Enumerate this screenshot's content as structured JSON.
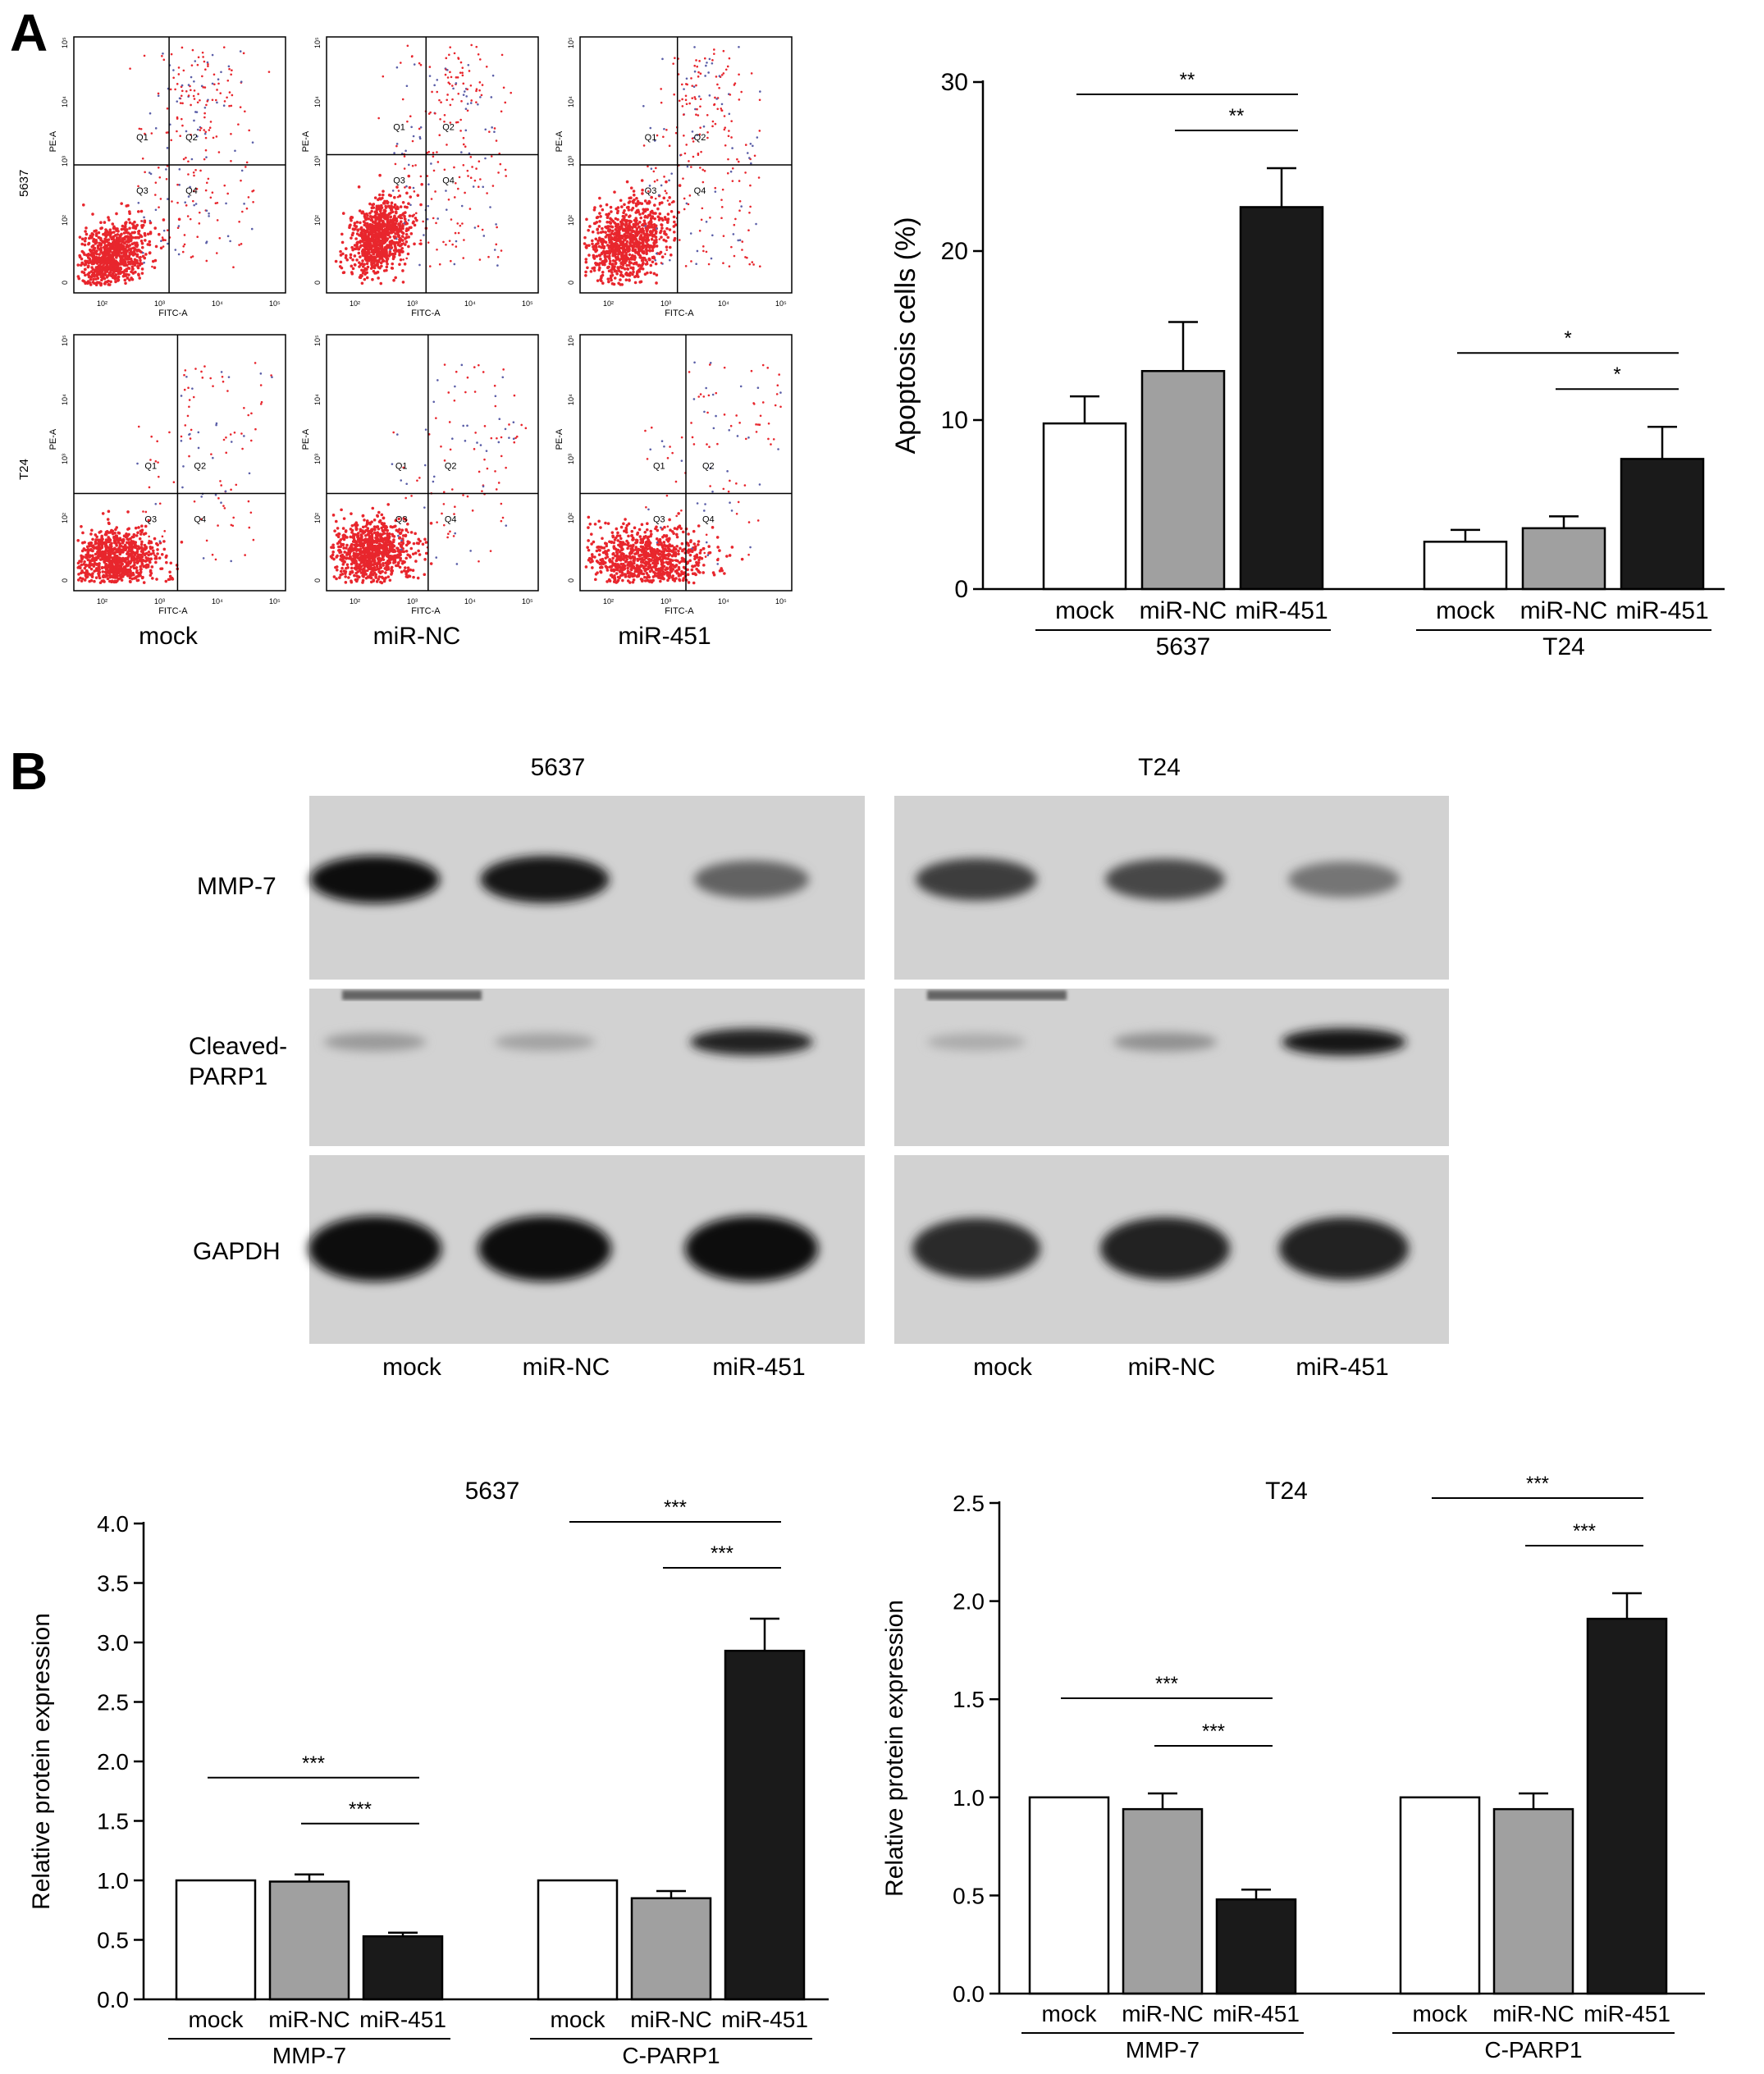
{
  "panel_labels": [
    "A",
    "B"
  ],
  "flow": {
    "plots": [
      {
        "row": 0,
        "col": 0,
        "cell": "5637",
        "group": "mock",
        "quadrants": [
          "Q1",
          "Q2",
          "Q3",
          "Q4"
        ],
        "xaxis": "FITC-A",
        "yaxis": "PE-A"
      },
      {
        "row": 0,
        "col": 1,
        "cell": "5637",
        "group": "miR-NC",
        "quadrants": [
          "Q1",
          "Q2",
          "Q3",
          "Q4"
        ],
        "xaxis": "FITC-A",
        "yaxis": "PE-A"
      },
      {
        "row": 0,
        "col": 2,
        "cell": "5637",
        "group": "miR-451",
        "quadrants": [
          "Q1",
          "Q2",
          "Q3",
          "Q4"
        ],
        "xaxis": "FITC-A",
        "yaxis": "PE-A"
      },
      {
        "row": 1,
        "col": 0,
        "cell": "T24",
        "group": "mock",
        "quadrants": [
          "Q1",
          "Q2",
          "Q3",
          "Q4"
        ],
        "xaxis": "FITC-A",
        "yaxis": "PE-A"
      },
      {
        "row": 1,
        "col": 1,
        "cell": "T24",
        "group": "miR-NC",
        "quadrants": [
          "Q1",
          "Q2",
          "Q3",
          "Q4"
        ],
        "xaxis": "FITC-A",
        "yaxis": "PE-A"
      },
      {
        "row": 1,
        "col": 2,
        "cell": "T24",
        "group": "miR-451",
        "quadrants": [
          "Q1",
          "Q2",
          "Q3",
          "Q4"
        ],
        "xaxis": "FITC-A",
        "yaxis": "PE-A"
      }
    ],
    "row_labels": [
      "5637",
      "T24"
    ],
    "col_labels": [
      "mock",
      "miR-NC",
      "miR-451"
    ],
    "x_ticks": [
      "10²",
      "10³",
      "10⁴",
      "10⁵"
    ],
    "y_ticks": [
      "0",
      "10²",
      "10³",
      "10⁴",
      "10⁵"
    ],
    "dot_color": "#e8262d"
  },
  "blot": {
    "cell_titles": [
      "5637",
      "T24"
    ],
    "row_labels": [
      [
        "MMP-7"
      ],
      [
        "Cleaved-",
        "PARP1"
      ],
      [
        "GAPDH"
      ]
    ],
    "lane_labels": [
      "mock",
      "miR-NC",
      "miR-451"
    ],
    "band_intensity": {
      "5637": {
        "MMP-7": [
          1.0,
          0.98,
          0.55
        ],
        "Cleaved-PARP1": [
          0.25,
          0.2,
          0.9
        ],
        "GAPDH": [
          1.0,
          1.0,
          1.0
        ]
      },
      "T24": {
        "MMP-7": [
          0.75,
          0.7,
          0.45
        ],
        "Cleaved-PARP1": [
          0.15,
          0.3,
          0.95
        ],
        "GAPDH": [
          0.85,
          0.9,
          0.9
        ]
      }
    }
  },
  "colors": {
    "mock": "#ffffff",
    "miR-NC": "#a0a0a0",
    "miR-451": "#1a1a1a",
    "axis": "#000000"
  },
  "chart_data": [
    {
      "type": "bar",
      "panel": "A",
      "title": "",
      "ylabel": "Apoptosis cells (%)",
      "ylim": [
        0,
        30
      ],
      "yticks": [
        0,
        10,
        20,
        30
      ],
      "groups": [
        "5637",
        "T24"
      ],
      "categories": [
        "mock",
        "miR-NC",
        "miR-451"
      ],
      "series": [
        {
          "group": "5637",
          "values": [
            9.8,
            12.9,
            22.6
          ],
          "errors": [
            1.6,
            2.9,
            2.3
          ]
        },
        {
          "group": "T24",
          "values": [
            2.8,
            3.6,
            7.7
          ],
          "errors": [
            0.7,
            0.7,
            1.9
          ]
        }
      ],
      "significance": [
        {
          "group": "5637",
          "from": 0,
          "to": 2,
          "label": "**"
        },
        {
          "group": "5637",
          "from": 1,
          "to": 2,
          "label": "**"
        },
        {
          "group": "T24",
          "from": 0,
          "to": 2,
          "label": "*"
        },
        {
          "group": "T24",
          "from": 1,
          "to": 2,
          "label": "*"
        }
      ]
    },
    {
      "type": "bar",
      "panel": "B",
      "title": "5637",
      "ylabel": "Relative protein expression",
      "ylim": [
        0,
        4.0
      ],
      "yticks": [
        "0.0",
        "0.5",
        "1.0",
        "1.5",
        "2.0",
        "2.5",
        "3.0",
        "3.5",
        "4.0"
      ],
      "groups": [
        "MMP-7",
        "C-PARP1"
      ],
      "categories": [
        "mock",
        "miR-NC",
        "miR-451"
      ],
      "series": [
        {
          "group": "MMP-7",
          "values": [
            1.0,
            0.99,
            0.53
          ],
          "errors": [
            0,
            0.06,
            0.03
          ]
        },
        {
          "group": "C-PARP1",
          "values": [
            1.0,
            0.85,
            2.93
          ],
          "errors": [
            0,
            0.06,
            0.27
          ]
        }
      ],
      "significance": [
        {
          "group": "MMP-7",
          "from": 0,
          "to": 2,
          "label": "***"
        },
        {
          "group": "MMP-7",
          "from": 1,
          "to": 2,
          "label": "***"
        },
        {
          "group": "C-PARP1",
          "from": 0,
          "to": 2,
          "label": "***"
        },
        {
          "group": "C-PARP1",
          "from": 1,
          "to": 2,
          "label": "***"
        }
      ]
    },
    {
      "type": "bar",
      "panel": "B",
      "title": "T24",
      "ylabel": "Relative protein expression",
      "ylim": [
        0,
        2.5
      ],
      "yticks": [
        "0.0",
        "0.5",
        "1.0",
        "1.5",
        "2.0",
        "2.5"
      ],
      "groups": [
        "MMP-7",
        "C-PARP1"
      ],
      "categories": [
        "mock",
        "miR-NC",
        "miR-451"
      ],
      "series": [
        {
          "group": "MMP-7",
          "values": [
            1.0,
            0.94,
            0.48
          ],
          "errors": [
            0,
            0.08,
            0.05
          ]
        },
        {
          "group": "C-PARP1",
          "values": [
            1.0,
            0.94,
            1.91
          ],
          "errors": [
            0,
            0.08,
            0.13
          ]
        }
      ],
      "significance": [
        {
          "group": "MMP-7",
          "from": 0,
          "to": 2,
          "label": "***"
        },
        {
          "group": "MMP-7",
          "from": 1,
          "to": 2,
          "label": "***"
        },
        {
          "group": "C-PARP1",
          "from": 0,
          "to": 2,
          "label": "***"
        },
        {
          "group": "C-PARP1",
          "from": 1,
          "to": 2,
          "label": "***"
        }
      ]
    }
  ]
}
